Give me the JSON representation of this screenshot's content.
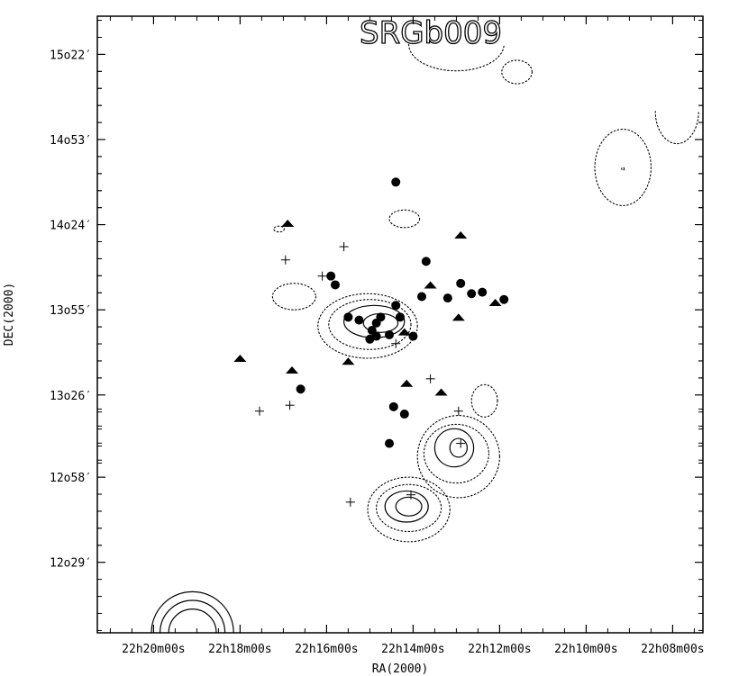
{
  "chart_data": {
    "type": "scatter",
    "title": "SRGb009",
    "xlabel": "RA(2000)",
    "ylabel": "DEC(2000)",
    "x_unit": "RA minutes (22h offset), decreasing to the right",
    "y_unit": "DEC arcminutes",
    "xlim": [
      21.3,
      7.3
    ],
    "ylim": [
      725,
      935
    ],
    "x_ticks": [
      {
        "value": 20,
        "label": "22h20m00s"
      },
      {
        "value": 18,
        "label": "22h18m00s"
      },
      {
        "value": 16,
        "label": "22h16m00s"
      },
      {
        "value": 14,
        "label": "22h14m00s"
      },
      {
        "value": 12,
        "label": "22h12m00s"
      },
      {
        "value": 10,
        "label": "22h10m00s"
      },
      {
        "value": 8,
        "label": "22h08m00s"
      }
    ],
    "y_ticks": [
      {
        "value": 749,
        "label": "12o29′"
      },
      {
        "value": 778,
        "label": "12o58′"
      },
      {
        "value": 806,
        "label": "13o26′"
      },
      {
        "value": 835,
        "label": "13o55′"
      },
      {
        "value": 864,
        "label": "14o24′"
      },
      {
        "value": 893,
        "label": "14o53′"
      },
      {
        "value": 922,
        "label": "15o22′"
      }
    ],
    "series": [
      {
        "marker": "circle",
        "points": [
          [
            14.4,
            878.5
          ],
          [
            13.7,
            851.5
          ],
          [
            15.9,
            846.5
          ],
          [
            15.8,
            843.5
          ],
          [
            13.8,
            839.5
          ],
          [
            12.9,
            844
          ],
          [
            12.65,
            840.5
          ],
          [
            12.4,
            841
          ],
          [
            11.9,
            838.5
          ],
          [
            13.2,
            839
          ],
          [
            14.4,
            836.5
          ],
          [
            14.75,
            832.5
          ],
          [
            14.3,
            832.5
          ],
          [
            15.5,
            832.5
          ],
          [
            15.25,
            831.5
          ],
          [
            14.85,
            830.5
          ],
          [
            14.95,
            828
          ],
          [
            14.55,
            826.5
          ],
          [
            14.85,
            826
          ],
          [
            15.0,
            825
          ],
          [
            14.0,
            826
          ],
          [
            16.6,
            808
          ],
          [
            14.45,
            802
          ],
          [
            14.2,
            799.5
          ],
          [
            14.55,
            789.5
          ]
        ]
      },
      {
        "marker": "triangle",
        "points": [
          [
            16.9,
            864.5
          ],
          [
            12.9,
            860.5
          ],
          [
            13.6,
            843.5
          ],
          [
            12.1,
            837.5
          ],
          [
            12.95,
            832.5
          ],
          [
            14.2,
            827.5
          ],
          [
            18.0,
            818.5
          ],
          [
            15.5,
            817.5
          ],
          [
            16.8,
            814.5
          ],
          [
            14.15,
            810
          ],
          [
            13.35,
            807
          ]
        ]
      },
      {
        "marker": "plus",
        "points": [
          [
            15.6,
            856.5
          ],
          [
            16.95,
            852
          ],
          [
            16.1,
            846.5
          ],
          [
            14.4,
            823.5
          ],
          [
            13.6,
            811.5
          ],
          [
            16.85,
            802.5
          ],
          [
            17.55,
            800.5
          ],
          [
            12.95,
            800.5
          ],
          [
            12.9,
            789.5
          ],
          [
            14.05,
            772
          ],
          [
            15.45,
            769.5
          ]
        ]
      }
    ],
    "contours": {
      "solid": [
        {
          "shape": "ellipse",
          "center": [
            14.75,
            830.5
          ],
          "semi_axes_minutes": [
            0.4,
            3.2
          ]
        },
        {
          "shape": "ellipse",
          "center": [
            14.9,
            831
          ],
          "semi_axes_minutes": [
            0.7,
            5.5
          ]
        },
        {
          "shape": "ellipse",
          "center": [
            12.95,
            788
          ],
          "semi_axes_minutes": [
            0.2,
            3.2
          ]
        },
        {
          "shape": "ellipse",
          "center": [
            13.05,
            788
          ],
          "semi_axes_minutes": [
            0.45,
            6.5
          ]
        },
        {
          "shape": "ellipse",
          "center": [
            14.1,
            768
          ],
          "semi_axes_minutes": [
            0.3,
            3.2
          ]
        },
        {
          "shape": "ellipse",
          "center": [
            14.15,
            768
          ],
          "semi_axes_minutes": [
            0.5,
            5.3
          ]
        },
        {
          "shape": "arc",
          "center": [
            19.1,
            727
          ],
          "radii_minutes": [
            0.55,
            0.75,
            0.95
          ]
        }
      ],
      "dotted": [
        {
          "shape": "ellipse",
          "center": [
            15.0,
            830
          ],
          "semi_axes_minutes": [
            0.95,
            8.5
          ]
        },
        {
          "shape": "ellipse",
          "center": [
            15.05,
            829.5
          ],
          "semi_axes_minutes": [
            1.15,
            11
          ]
        },
        {
          "shape": "ellipse",
          "center": [
            13.0,
            786
          ],
          "semi_axes_minutes": [
            0.75,
            10
          ]
        },
        {
          "shape": "ellipse",
          "center": [
            12.95,
            785
          ],
          "semi_axes_minutes": [
            0.95,
            14
          ]
        },
        {
          "shape": "ellipse",
          "center": [
            14.1,
            767.5
          ],
          "semi_axes_minutes": [
            0.75,
            8
          ]
        },
        {
          "shape": "ellipse",
          "center": [
            14.1,
            767
          ],
          "semi_axes_minutes": [
            0.95,
            11
          ]
        },
        {
          "shape": "ellipse",
          "center": [
            12.35,
            804
          ],
          "semi_axes_minutes": [
            0.3,
            5.5
          ]
        },
        {
          "shape": "ellipse",
          "center": [
            14.2,
            866
          ],
          "semi_axes_minutes": [
            0.35,
            3
          ]
        },
        {
          "shape": "ellipse",
          "center": [
            17.1,
            862.5
          ],
          "semi_axes_minutes": [
            0.12,
            1
          ]
        },
        {
          "shape": "ellipse",
          "center": [
            16.75,
            839.5
          ],
          "semi_axes_minutes": [
            0.5,
            4.5
          ]
        },
        {
          "shape": "ellipse",
          "center": [
            9.15,
            883.5
          ],
          "semi_axes_minutes": [
            0.65,
            13
          ]
        },
        {
          "shape": "ellipse",
          "center": [
            9.15,
            883
          ],
          "semi_axes_minutes": [
            0.03,
            0.5
          ]
        },
        {
          "shape": "ellipse",
          "center": [
            11.6,
            916
          ],
          "semi_axes_minutes": [
            0.35,
            4
          ]
        },
        {
          "shape": "arc-open",
          "center": [
            13.0,
            920
          ],
          "semi_axes_minutes": [
            1.1,
            9
          ]
        },
        {
          "shape": "arc-open",
          "center": [
            7.9,
            896
          ],
          "semi_axes_minutes": [
            0.5,
            11
          ]
        }
      ]
    },
    "legend": "none",
    "grid": false,
    "ink_color": "#000000",
    "background_color": "#ffffff"
  }
}
